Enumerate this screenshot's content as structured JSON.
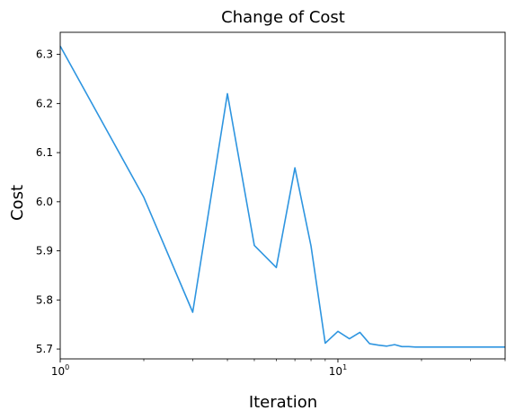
{
  "chart_data": {
    "type": "line",
    "title": "Change of Cost",
    "xlabel": "Iteration",
    "ylabel": "Cost",
    "x_scale": "log",
    "xlim": [
      1,
      40
    ],
    "ylim": [
      5.68,
      6.345
    ],
    "grid": false,
    "legend": "none",
    "x_ticks": [
      {
        "value": 1,
        "base": "10",
        "exp": "0"
      },
      {
        "value": 10,
        "base": "10",
        "exp": "1"
      }
    ],
    "y_ticks": [
      {
        "value": 5.7,
        "label": "5.7"
      },
      {
        "value": 5.8,
        "label": "5.8"
      },
      {
        "value": 5.9,
        "label": "5.9"
      },
      {
        "value": 6.0,
        "label": "6.0"
      },
      {
        "value": 6.1,
        "label": "6.1"
      },
      {
        "value": 6.2,
        "label": "6.2"
      },
      {
        "value": 6.3,
        "label": "6.3"
      }
    ],
    "series": [
      {
        "color": "#2e95e0",
        "x": [
          1,
          2,
          3,
          4,
          5,
          6,
          7,
          8,
          9,
          10,
          11,
          12,
          13,
          14,
          15,
          16,
          17,
          18,
          19,
          20,
          25,
          30,
          35,
          40
        ],
        "values": [
          6.317,
          6.009,
          5.775,
          6.22,
          5.911,
          5.866,
          6.069,
          5.91,
          5.712,
          5.736,
          5.721,
          5.734,
          5.711,
          5.708,
          5.706,
          5.709,
          5.705,
          5.705,
          5.704,
          5.704,
          5.704,
          5.704,
          5.704,
          5.704
        ]
      }
    ]
  }
}
